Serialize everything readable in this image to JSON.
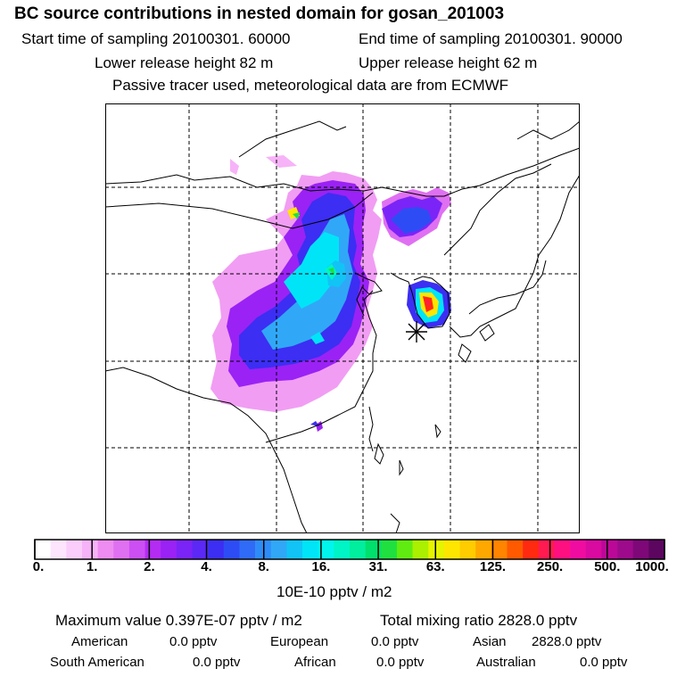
{
  "header": {
    "title": "BC  source contributions in nested domain for gosan_201003",
    "start_time": "Start time of sampling 20100301. 60000",
    "end_time": "End time of sampling 20100301. 90000",
    "lower_height": "Lower release height   82 m",
    "upper_height": "Upper release height   62 m",
    "tracer_note": "Passive tracer used, meteorological data are from ECMWF"
  },
  "colorbar": {
    "ticks": [
      "0.",
      "1.",
      "2.",
      "4.",
      "8.",
      "16.",
      "31.",
      "63.",
      "125.",
      "250.",
      "500.",
      "1000."
    ],
    "unit": "10E-10 pptv / m2",
    "colors": [
      "#ffffff",
      "#fde6fd",
      "#fbcdfb",
      "#f7b3f7",
      "#ee8cf1",
      "#e070f2",
      "#cc4ff3",
      "#b42cf2",
      "#9a22f5",
      "#7b24f7",
      "#5c28f5",
      "#3c2ef3",
      "#2e4cf5",
      "#2f6bf7",
      "#2e8cf8",
      "#30a8f7",
      "#11c4f5",
      "#00e4f8",
      "#00f6ec",
      "#00f5c6",
      "#00ee9d",
      "#00e06c",
      "#20e040",
      "#60ec10",
      "#aaf000",
      "#e6f400",
      "#ffe600",
      "#ffcc00",
      "#ffa800",
      "#ff8400",
      "#ff5a00",
      "#ff2a10",
      "#ff1a50",
      "#ff1080",
      "#f00ca0",
      "#d80aa0",
      "#bc0898",
      "#9e0a8c",
      "#7e0878",
      "#5c0660"
    ]
  },
  "stats": {
    "maximum": "Maximum value  0.397E-07 pptv / m2",
    "total": "Total mixing ratio     2828.0 pptv",
    "american_label": "American",
    "american_value": "0.0 pptv",
    "european_label": "European",
    "european_value": "0.0 pptv",
    "asian_label": "Asian",
    "asian_value": "2828.0 pptv",
    "south_american_label": "South American",
    "south_american_value": "0.0 pptv",
    "african_label": "African",
    "african_value": "0.0 pptv",
    "australian_label": "Australian",
    "australian_value": "0.0 pptv"
  },
  "map": {
    "receptor_icon": "asterisk-icon",
    "colors": {
      "magenta": "#cc4ff3",
      "purple": "#9a22f5",
      "blue": "#3c2ef3",
      "lightblue": "#30a8f7",
      "cyan": "#00e4f8",
      "green": "#20e040",
      "yellow": "#ffe600",
      "red": "#ff2a10"
    }
  }
}
